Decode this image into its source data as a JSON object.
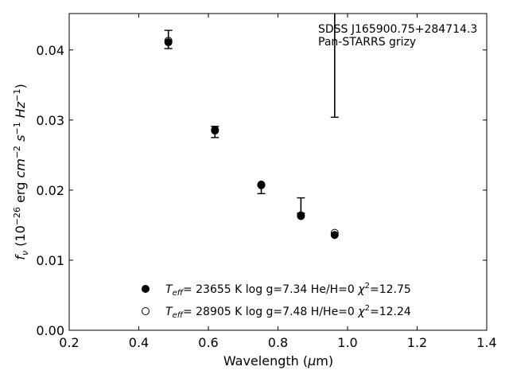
{
  "chart_data": {
    "type": "scatter",
    "annotation": [
      "SDSS J165900.75+284714.3",
      "Pan-STARRS grizy"
    ],
    "xlabel": "Wavelength (μm)",
    "ylabel": "f_ν (10^-26 erg cm^-2 s^-1 Hz^-1)",
    "xlim": [
      0.2,
      1.4
    ],
    "ylim": [
      0.0,
      0.0452
    ],
    "xticks": [
      0.2,
      0.4,
      0.6,
      0.8,
      1.0,
      1.2,
      1.4
    ],
    "yticks": [
      0.0,
      0.01,
      0.02,
      0.03,
      0.04
    ],
    "xtick_labels": [
      "0.2",
      "0.4",
      "0.6",
      "0.8",
      "1.0",
      "1.2",
      "1.4"
    ],
    "ytick_labels": [
      "0.00",
      "0.01",
      "0.02",
      "0.03",
      "0.04"
    ],
    "grid": false,
    "legend_position": "bottom-center",
    "observed": {
      "name": "Pan-STARRS grizy",
      "x": [
        0.485,
        0.619,
        0.752,
        0.866,
        0.963
      ],
      "y": [
        0.0415,
        0.0283,
        0.0206,
        0.0167,
        0.038
      ],
      "yerr_low": [
        0.0013,
        0.0008,
        0.0011,
        0.0,
        0.0076
      ],
      "yerr_high": [
        0.0013,
        0.0008,
        0.0,
        0.0022,
        0.0076
      ]
    },
    "series": [
      {
        "name": "T_eff= 23655 K  log g=7.34  He/H=0  χ²=12.75",
        "marker": "filled-circle",
        "x": [
          0.485,
          0.619,
          0.752,
          0.866,
          0.963
        ],
        "y": [
          0.0411,
          0.0285,
          0.0207,
          0.0163,
          0.0136
        ]
      },
      {
        "name": "T_eff= 28905 K  log g=7.48  H/He=0  χ²=12.24",
        "marker": "open-circle",
        "x": [
          0.485,
          0.619,
          0.752,
          0.866,
          0.963
        ],
        "y": [
          0.0413,
          0.0286,
          0.0208,
          0.0164,
          0.0139
        ]
      }
    ],
    "legend": [
      {
        "teff": "23655",
        "logg": "7.34",
        "comp": "He/H=0",
        "chi": "12.75"
      },
      {
        "teff": "28905",
        "logg": "7.48",
        "comp": "H/He=0",
        "chi": "12.24"
      }
    ]
  }
}
